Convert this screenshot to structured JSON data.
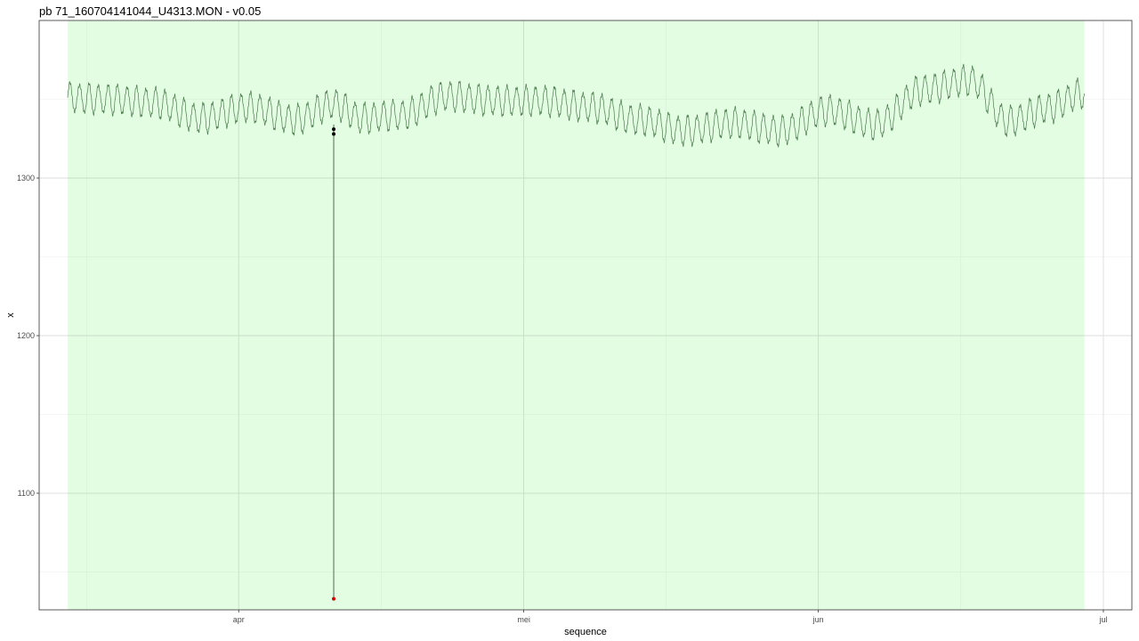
{
  "chart_data": {
    "type": "line",
    "title": "pb 71_160704141044_U4313.MON - v0.05",
    "xlabel": "sequence",
    "ylabel": "x",
    "x_axis": {
      "type": "date",
      "range": [
        "2016-03-11",
        "2016-07-04"
      ],
      "ticks": [
        {
          "date": "2016-04-01",
          "label": "apr"
        },
        {
          "date": "2016-05-01",
          "label": "mei"
        },
        {
          "date": "2016-06-01",
          "label": "jun"
        },
        {
          "date": "2016-07-01",
          "label": "jul"
        }
      ],
      "minor_gridlines": [
        "2016-03-16",
        "2016-04-16",
        "2016-05-16",
        "2016-06-16"
      ]
    },
    "y_axis": {
      "range": [
        1026,
        1400
      ],
      "ticks": [
        1100,
        1200,
        1300
      ],
      "minor_gridlines": [
        1050,
        1150,
        1250,
        1350
      ]
    },
    "grid": true,
    "highlight_region": {
      "start": "2016-03-14",
      "end": "2016-06-29",
      "color": "#e3fde3"
    },
    "series": [
      {
        "color": "#4a7a4a",
        "daily_oscillation_amplitude": 9,
        "x": [
          "2016-03-14",
          "2016-03-18",
          "2016-03-23",
          "2016-03-28",
          "2016-04-02",
          "2016-04-07",
          "2016-04-11",
          "2016-04-14",
          "2016-04-18",
          "2016-04-23",
          "2016-04-28",
          "2016-05-03",
          "2016-05-08",
          "2016-05-13",
          "2016-05-18",
          "2016-05-23",
          "2016-05-28",
          "2016-06-02",
          "2016-06-07",
          "2016-06-12",
          "2016-06-17",
          "2016-06-21",
          "2016-06-25",
          "2016-06-29"
        ],
        "y": [
          1351,
          1350,
          1348,
          1338,
          1345,
          1337,
          1347,
          1338,
          1340,
          1352,
          1349,
          1349,
          1345,
          1337,
          1330,
          1335,
          1330,
          1343,
          1334,
          1356,
          1362,
          1336,
          1344,
          1354
        ]
      }
    ],
    "spike_points": [
      {
        "date": "2016-04-11",
        "value": 1331,
        "color": "#000000"
      },
      {
        "date": "2016-04-11",
        "value": 1328,
        "color": "#000000"
      },
      {
        "date": "2016-04-11",
        "value": 1033,
        "color": "#d40000"
      }
    ]
  }
}
